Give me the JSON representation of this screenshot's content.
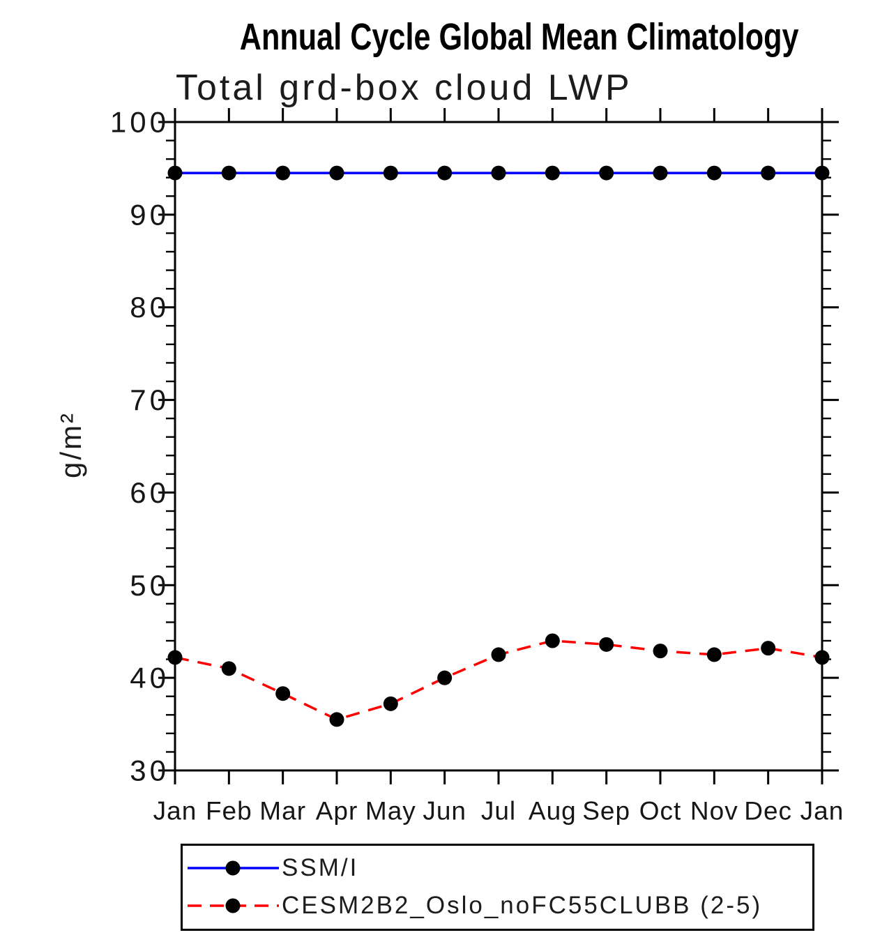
{
  "chart_data": {
    "type": "line",
    "title": "Annual Cycle Global Mean Climatology",
    "subtitle": "Total grd-box cloud LWP",
    "xlabel": "",
    "ylabel": "g/m²",
    "ylim": [
      30,
      100
    ],
    "yticks": [
      30,
      40,
      50,
      60,
      70,
      80,
      90,
      100
    ],
    "ytick_minor_step": 2,
    "grid": false,
    "legend_position": "bottom-left",
    "axis_color": "#000000",
    "categories": [
      "Jan",
      "Feb",
      "Mar",
      "Apr",
      "May",
      "Jun",
      "Jul",
      "Aug",
      "Sep",
      "Oct",
      "Nov",
      "Dec",
      "Jan"
    ],
    "series": [
      {
        "name": "SSM/I",
        "color": "#0000ff",
        "line_style": "solid",
        "marker": "filled-circle",
        "marker_color": "#000000",
        "values": [
          94.5,
          94.5,
          94.5,
          94.5,
          94.5,
          94.5,
          94.5,
          94.5,
          94.5,
          94.5,
          94.5,
          94.5,
          94.5
        ]
      },
      {
        "name": "CESM2B2_Oslo_noFC55CLUBB (2-5)",
        "color": "#ff0000",
        "line_style": "dashed",
        "marker": "filled-circle",
        "marker_color": "#000000",
        "values": [
          42.2,
          41.0,
          38.3,
          35.5,
          37.2,
          40.0,
          42.5,
          44.0,
          43.6,
          42.9,
          42.5,
          43.2,
          42.2
        ]
      }
    ]
  }
}
